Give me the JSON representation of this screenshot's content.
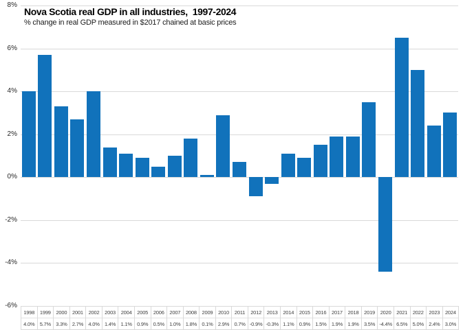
{
  "chart_data": {
    "type": "bar",
    "title": "Nova Scotia real GDP in all industries,  1997-2024",
    "subtitle": "% change in real GDP measured in $2017 chained at basic prices",
    "categories": [
      "1998",
      "1999",
      "2000",
      "2001",
      "2002",
      "2003",
      "2004",
      "2005",
      "2006",
      "2007",
      "2008",
      "2009",
      "2010",
      "2011",
      "2012",
      "2013",
      "2014",
      "2015",
      "2016",
      "2017",
      "2018",
      "2019",
      "2020",
      "2021",
      "2022",
      "2023",
      "2024"
    ],
    "values": [
      4.0,
      5.7,
      3.3,
      2.7,
      4.0,
      1.4,
      1.1,
      0.9,
      0.5,
      1.0,
      1.8,
      0.1,
      2.9,
      0.7,
      -0.9,
      -0.3,
      1.1,
      0.9,
      1.5,
      1.9,
      1.9,
      3.5,
      -4.4,
      6.5,
      5.0,
      2.4,
      3.0
    ],
    "value_labels": [
      "4.0%",
      "5.7%",
      "3.3%",
      "2.7%",
      "4.0%",
      "1.4%",
      "1.1%",
      "0.9%",
      "0.5%",
      "1.0%",
      "1.8%",
      "0.1%",
      "2.9%",
      "0.7%",
      "-0.9%",
      "-0.3%",
      "1.1%",
      "0.9%",
      "1.5%",
      "1.9%",
      "1.9%",
      "3.5%",
      "-4.4%",
      "6.5%",
      "5.0%",
      "2.4%",
      "3.0%"
    ],
    "xlabel": "",
    "ylabel": "",
    "ylim": [
      -6,
      8
    ],
    "yticks": [
      8,
      6,
      4,
      2,
      0,
      -2,
      -4,
      -6
    ],
    "ytick_labels": [
      "8%",
      "6%",
      "4%",
      "2%",
      "0%",
      "-2%",
      "-4%",
      "-6%"
    ],
    "grid": true,
    "legend": false,
    "data_table_shown": true,
    "colors": {
      "bar": "#1172BB",
      "gridline": "#D9D9D9",
      "table_border": "#D9D9D9",
      "table_row_divider": "#E2E2E2",
      "table_text": "#404040",
      "axis_text": "#262626",
      "title_text": "#000000"
    }
  }
}
